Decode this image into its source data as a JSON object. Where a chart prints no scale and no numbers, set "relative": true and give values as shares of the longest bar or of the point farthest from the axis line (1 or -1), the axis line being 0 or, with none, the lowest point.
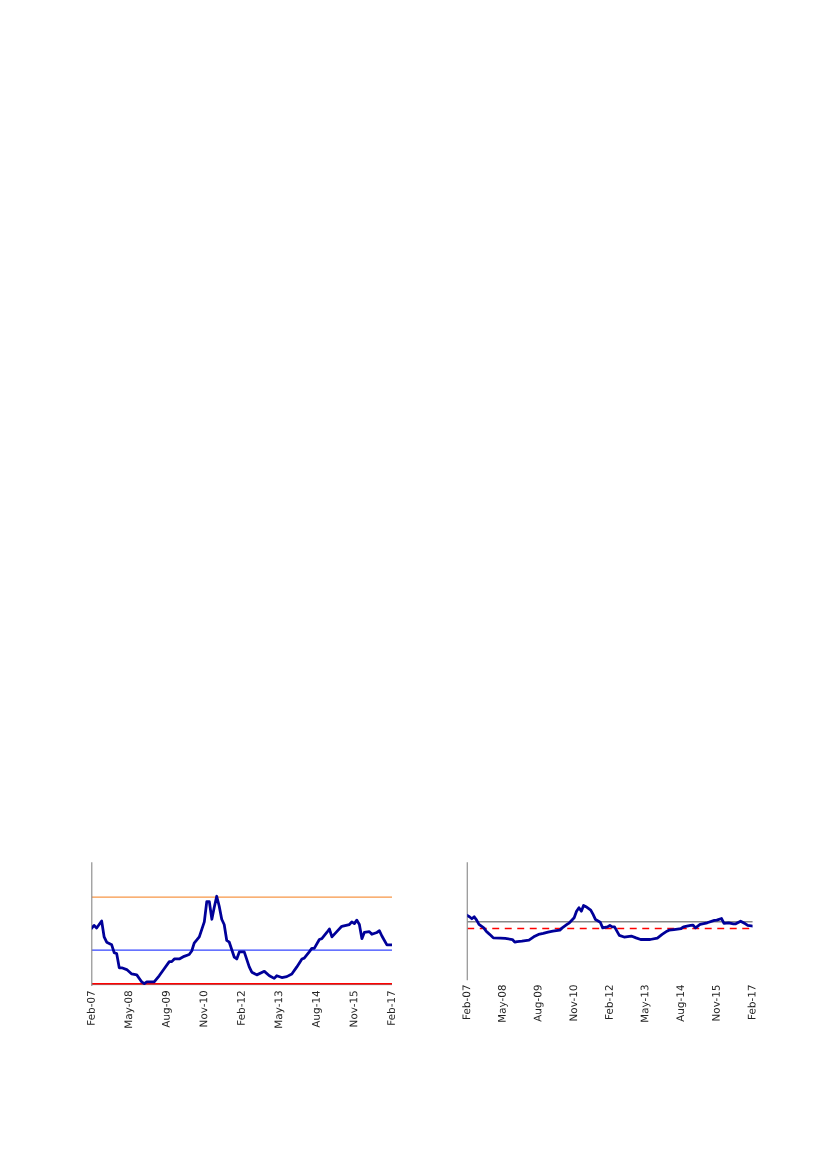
{
  "chart_data": [
    {
      "type": "line",
      "relative": true,
      "tick_labels": "x",
      "grid": false,
      "legend": false,
      "line_style": "solid",
      "marker": "none",
      "x": [
        "2007-02",
        "2007-03",
        "2007-04",
        "2007-06",
        "2007-07",
        "2007-08",
        "2007-10",
        "2007-11",
        "2007-12",
        "2008-01",
        "2008-02",
        "2008-04",
        "2008-06",
        "2008-08",
        "2008-10",
        "2008-11",
        "2008-12",
        "2009-03",
        "2009-05",
        "2009-07",
        "2009-09",
        "2009-10",
        "2009-11",
        "2010-01",
        "2010-03",
        "2010-05",
        "2010-06",
        "2010-07",
        "2010-09",
        "2010-11",
        "2010-12",
        "2011-01",
        "2011-02",
        "2011-03",
        "2011-04",
        "2011-05",
        "2011-06",
        "2011-07",
        "2011-08",
        "2011-09",
        "2011-11",
        "2011-12",
        "2012-01",
        "2012-03",
        "2012-05",
        "2012-06",
        "2012-08",
        "2012-11",
        "2013-01",
        "2013-03",
        "2013-04",
        "2013-06",
        "2013-08",
        "2013-10",
        "2013-12",
        "2014-02",
        "2014-03",
        "2014-05",
        "2014-06",
        "2014-07",
        "2014-09",
        "2014-10",
        "2014-12",
        "2015-01",
        "2015-02",
        "2015-04",
        "2015-06",
        "2015-09",
        "2015-10",
        "2015-11",
        "2015-12",
        "2016-01",
        "2016-02",
        "2016-03",
        "2016-05",
        "2016-06",
        "2016-08",
        "2016-09",
        "2016-10",
        "2016-12",
        "2017-02"
      ],
      "series": [
        {
          "color": "#000099",
          "values": [
            0.64,
            0.67,
            0.64,
            0.72,
            0.54,
            0.48,
            0.45,
            0.36,
            0.35,
            0.19,
            0.19,
            0.17,
            0.12,
            0.11,
            0.03,
            0.01,
            0.03,
            0.03,
            0.1,
            0.18,
            0.26,
            0.26,
            0.29,
            0.29,
            0.32,
            0.34,
            0.38,
            0.47,
            0.54,
            0.71,
            0.94,
            0.94,
            0.74,
            0.87,
            1.0,
            0.89,
            0.74,
            0.68,
            0.5,
            0.48,
            0.31,
            0.29,
            0.37,
            0.37,
            0.2,
            0.14,
            0.11,
            0.15,
            0.1,
            0.07,
            0.1,
            0.08,
            0.09,
            0.12,
            0.2,
            0.29,
            0.3,
            0.37,
            0.41,
            0.41,
            0.51,
            0.52,
            0.59,
            0.63,
            0.54,
            0.6,
            0.66,
            0.68,
            0.71,
            0.69,
            0.73,
            0.68,
            0.52,
            0.59,
            0.6,
            0.57,
            0.59,
            0.61,
            0.55,
            0.45,
            0.45
          ]
        }
      ],
      "ref_lines": [
        {
          "axis": "y",
          "value": 0.99,
          "color": "#f79646",
          "line_style": "solid"
        },
        {
          "axis": "y",
          "value": 0.39,
          "color": "#3344ff",
          "line_style": "solid"
        },
        {
          "axis": "y",
          "value": 0.01,
          "color": "#ff0000",
          "line_style": "solid"
        }
      ],
      "xlim": [
        "2007-02",
        "2017-02"
      ],
      "xticks": [
        {
          "value": "2007-02",
          "label": "Feb-07"
        },
        {
          "value": "2008-05",
          "label": "May-08"
        },
        {
          "value": "2009-08",
          "label": "Aug-09"
        },
        {
          "value": "2010-11",
          "label": "Nov-10"
        },
        {
          "value": "2012-02",
          "label": "Feb-12"
        },
        {
          "value": "2013-05",
          "label": "May-13"
        },
        {
          "value": "2014-08",
          "label": "Aug-14"
        },
        {
          "value": "2015-11",
          "label": "Nov-15"
        },
        {
          "value": "2017-02",
          "label": "Feb-17"
        }
      ]
    },
    {
      "type": "line",
      "relative": true,
      "tick_labels": "x",
      "grid": false,
      "legend": false,
      "line_style": "solid",
      "marker": "none",
      "x": [
        "2007-02",
        "2007-03",
        "2007-04",
        "2007-05",
        "2007-06",
        "2007-07",
        "2007-09",
        "2007-10",
        "2007-11",
        "2007-12",
        "2008-01",
        "2008-04",
        "2008-06",
        "2008-09",
        "2008-10",
        "2008-11",
        "2009-01",
        "2009-04",
        "2009-06",
        "2009-08",
        "2009-10",
        "2009-12",
        "2010-02",
        "2010-05",
        "2010-06",
        "2010-08",
        "2010-09",
        "2010-11",
        "2010-12",
        "2011-01",
        "2011-02",
        "2011-03",
        "2011-04",
        "2011-06",
        "2011-07",
        "2011-08",
        "2011-10",
        "2011-11",
        "2012-01",
        "2012-02",
        "2012-03",
        "2012-04",
        "2012-05",
        "2012-06",
        "2012-08",
        "2012-11",
        "2013-01",
        "2013-03",
        "2013-07",
        "2013-10",
        "2013-12",
        "2014-02",
        "2014-03",
        "2014-05",
        "2014-08",
        "2014-09",
        "2014-12",
        "2015-01",
        "2015-02",
        "2015-04",
        "2015-07",
        "2015-10",
        "2015-11",
        "2016-01",
        "2016-02",
        "2016-04",
        "2016-06",
        "2016-07",
        "2016-09",
        "2016-11",
        "2016-12",
        "2017-02"
      ],
      "series": [
        {
          "color": "#000099",
          "values": [
            0.31,
            0.25,
            0.15,
            0.25,
            0.08,
            -0.13,
            -0.3,
            -0.46,
            -0.57,
            -0.67,
            -0.79,
            -0.8,
            -0.82,
            -0.87,
            -1.0,
            -0.97,
            -0.95,
            -0.9,
            -0.74,
            -0.62,
            -0.57,
            -0.51,
            -0.46,
            -0.41,
            -0.3,
            -0.13,
            -0.05,
            0.2,
            0.52,
            0.69,
            0.52,
            0.8,
            0.74,
            0.57,
            0.36,
            0.11,
            -0.02,
            -0.3,
            -0.25,
            -0.18,
            -0.25,
            -0.25,
            -0.46,
            -0.67,
            -0.75,
            -0.7,
            -0.79,
            -0.87,
            -0.87,
            -0.8,
            -0.62,
            -0.46,
            -0.41,
            -0.38,
            -0.33,
            -0.25,
            -0.18,
            -0.16,
            -0.3,
            -0.13,
            -0.05,
            0.07,
            0.08,
            0.16,
            -0.08,
            -0.05,
            -0.1,
            -0.1,
            0.03,
            -0.1,
            -0.18,
            -0.21
          ]
        }
      ],
      "ref_lines": [
        {
          "axis": "y",
          "value": -0.33,
          "color": "#ff0000",
          "line_style": "dashed"
        }
      ],
      "xlim": [
        "2007-02",
        "2017-02"
      ],
      "xticks": [
        {
          "value": "2007-02",
          "label": "Feb-07"
        },
        {
          "value": "2008-05",
          "label": "May-08"
        },
        {
          "value": "2009-08",
          "label": "Aug-09"
        },
        {
          "value": "2010-11",
          "label": "Nov-10"
        },
        {
          "value": "2012-02",
          "label": "Feb-12"
        },
        {
          "value": "2013-05",
          "label": "May-13"
        },
        {
          "value": "2014-08",
          "label": "Aug-14"
        },
        {
          "value": "2015-11",
          "label": "Nov-15"
        },
        {
          "value": "2017-02",
          "label": "Feb-17"
        }
      ]
    }
  ]
}
